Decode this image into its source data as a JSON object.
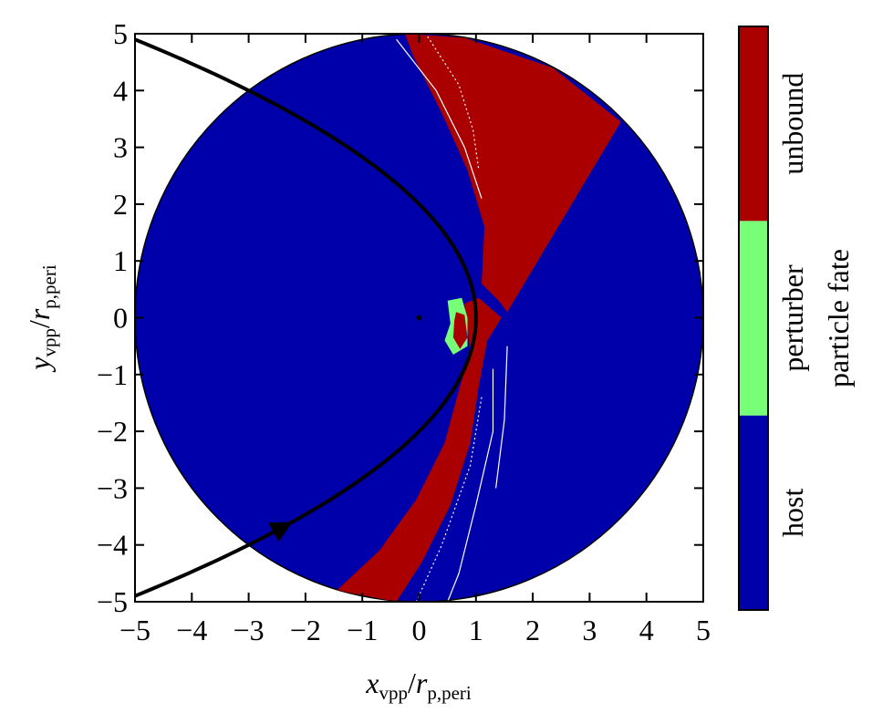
{
  "chart_data": {
    "type": "heatmap",
    "title": "",
    "xlabel": {
      "main": "x",
      "sub": "vpp",
      "sep": "/",
      "main2": "r",
      "sub2": "p,peri"
    },
    "ylabel": {
      "main": "y",
      "sub": "vpp",
      "sep": "/",
      "main2": "r",
      "sub2": "p,peri"
    },
    "xlim": [
      -5,
      5
    ],
    "ylim": [
      -5,
      5
    ],
    "xticks": [
      -5,
      -4,
      -3,
      -2,
      -1,
      0,
      1,
      2,
      3,
      4,
      5
    ],
    "yticks": [
      -5,
      -4,
      -3,
      -2,
      -1,
      0,
      1,
      2,
      3,
      4,
      5
    ],
    "xtick_labels": [
      "−5",
      "−4",
      "−3",
      "−2",
      "−1",
      "0",
      "1",
      "2",
      "3",
      "4",
      "5"
    ],
    "ytick_labels": [
      "−5",
      "−4",
      "−3",
      "−2",
      "−1",
      "0",
      "1",
      "2",
      "3",
      "4",
      "5"
    ],
    "disk_radius": 5,
    "grid": false,
    "colorbar": {
      "label": "particle fate",
      "categories": [
        "host",
        "perturber",
        "unbound"
      ],
      "colors": [
        "#0000aa",
        "#77ff77",
        "#aa0000"
      ]
    },
    "orbit": {
      "description_shape": "parabola",
      "pericenter": [
        1,
        0
      ],
      "color": "#000000",
      "direction": "counterclockwise",
      "arrow_at": [
        -2.3,
        -3.7
      ]
    },
    "host_center": [
      0,
      0
    ],
    "regions": {
      "unbound_upper": [
        [
          -0.25,
          5
        ],
        [
          -0.1,
          4.6
        ],
        [
          0.4,
          3.6
        ],
        [
          0.85,
          2.6
        ],
        [
          1.15,
          1.6
        ],
        [
          1.1,
          0.6
        ],
        [
          1.4,
          0.3
        ],
        [
          1.55,
          0.1
        ],
        [
          3.55,
          3.45
        ],
        [
          2.35,
          4.4
        ],
        [
          0.8,
          4.93
        ]
      ],
      "unbound_lower": [
        [
          1.45,
          0.0
        ],
        [
          1.2,
          -0.4
        ],
        [
          1.05,
          -1.2
        ],
        [
          0.9,
          -2.2
        ],
        [
          0.55,
          -3.3
        ],
        [
          0.05,
          -4.3
        ],
        [
          -0.4,
          -5.0
        ],
        [
          -1.45,
          -4.8
        ],
        [
          -0.7,
          -4.1
        ],
        [
          -0.05,
          -3.2
        ],
        [
          0.45,
          -2.2
        ],
        [
          0.72,
          -1.2
        ],
        [
          0.9,
          -0.6
        ],
        [
          0.8,
          0.25
        ],
        [
          1.05,
          0.35
        ]
      ],
      "perturber": [
        [
          0.5,
          0.3
        ],
        [
          0.75,
          0.35
        ],
        [
          0.85,
          0.0
        ],
        [
          0.85,
          -0.5
        ],
        [
          0.6,
          -0.65
        ],
        [
          0.45,
          -0.4
        ],
        [
          0.55,
          -0.1
        ]
      ],
      "unbound_inner": [
        [
          0.65,
          0.1
        ],
        [
          0.8,
          0.05
        ],
        [
          0.85,
          -0.35
        ],
        [
          0.72,
          -0.55
        ],
        [
          0.6,
          -0.35
        ],
        [
          0.62,
          -0.05
        ]
      ]
    }
  }
}
